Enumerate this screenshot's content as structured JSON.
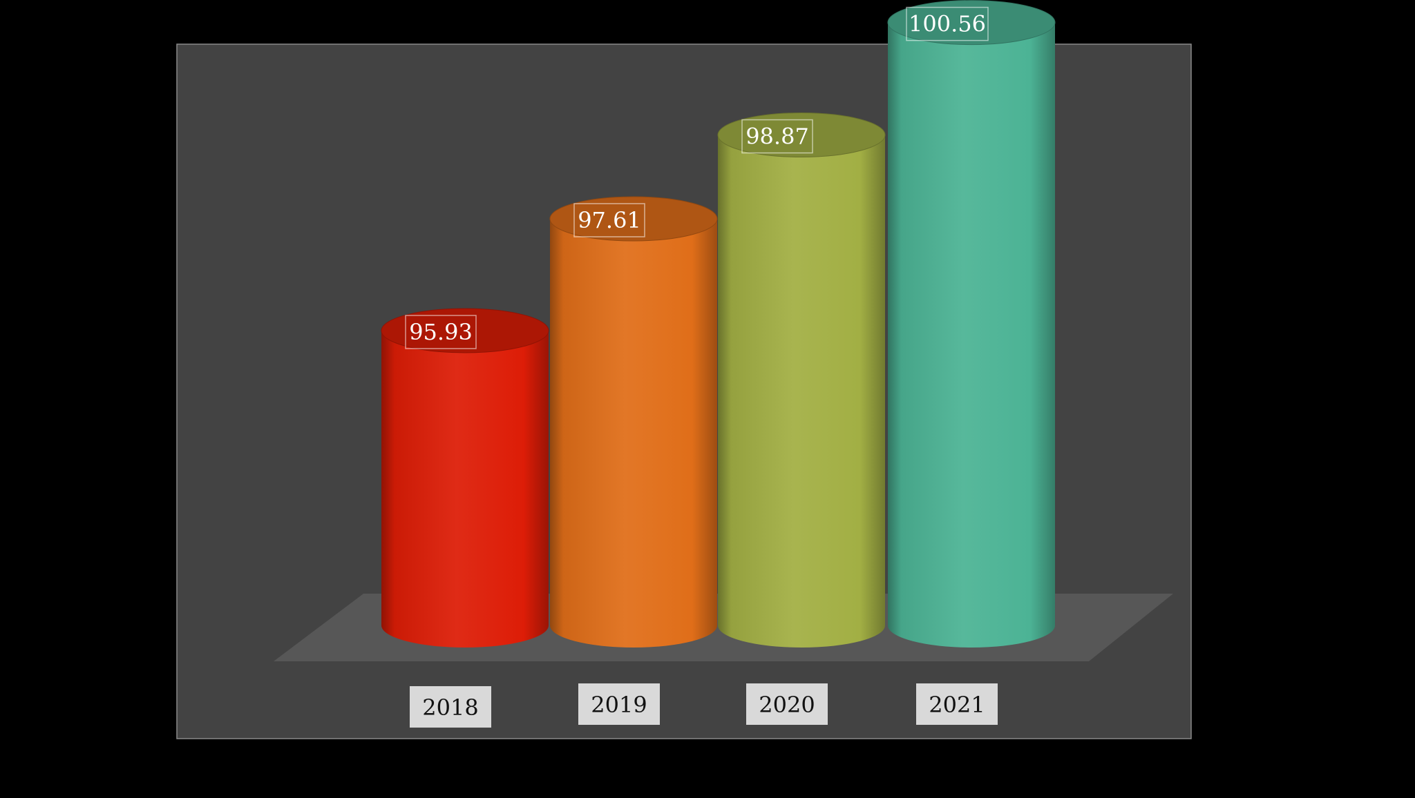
{
  "chart_data": {
    "type": "bar",
    "title": "",
    "xlabel": "",
    "ylabel": "",
    "categories": [
      "2018",
      "2019",
      "2020",
      "2021"
    ],
    "values": [
      95.93,
      97.61,
      98.87,
      100.56
    ],
    "value_labels": [
      "95.93",
      "97.61",
      "98.87",
      "100.56"
    ],
    "ylim": [
      91.5,
      101.3
    ],
    "grid": false,
    "legend": "none",
    "style": "3d-cylinder",
    "colors": [
      "#DD1D07",
      "#E06E19",
      "#A2AF44",
      "#4CB395"
    ]
  },
  "colors": {
    "page_background": "#000000",
    "plot_background": "#434343",
    "plot_border": "#8A8A8A",
    "floor": "#575757",
    "category_label_background": "#D9D9D9",
    "category_label_text": "#111111",
    "value_label_text": "#FFFFFF"
  }
}
